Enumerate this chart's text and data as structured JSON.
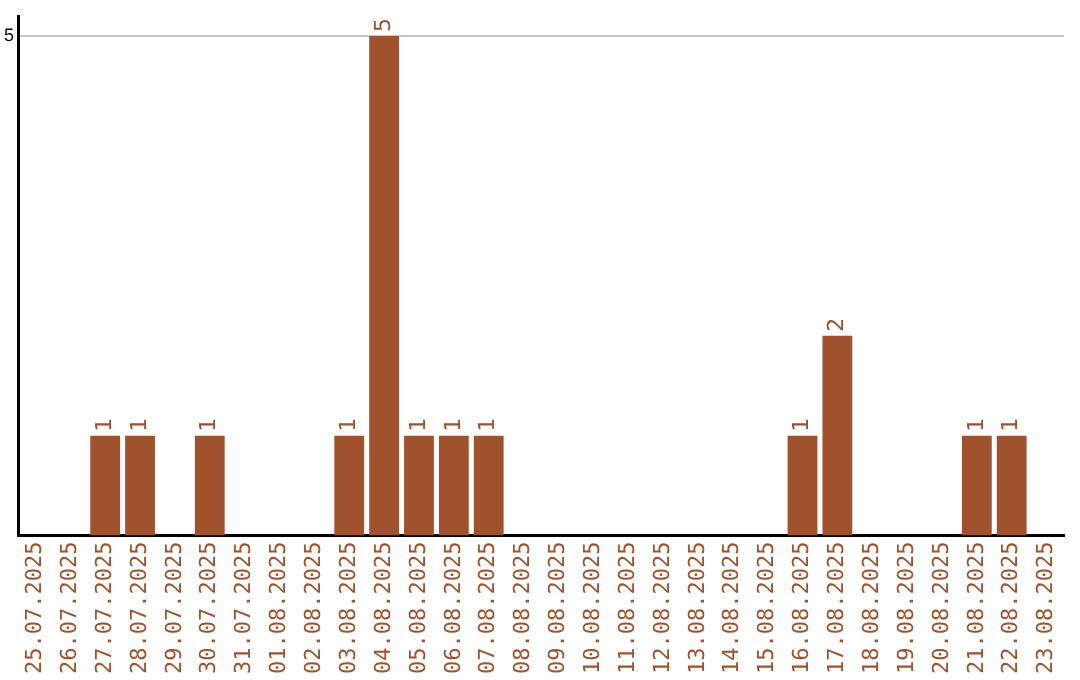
{
  "chart_data": {
    "type": "bar",
    "categories": [
      "25.07.2025",
      "26.07.2025",
      "27.07.2025",
      "28.07.2025",
      "29.07.2025",
      "30.07.2025",
      "31.07.2025",
      "01.08.2025",
      "02.08.2025",
      "03.08.2025",
      "04.08.2025",
      "05.08.2025",
      "06.08.2025",
      "07.08.2025",
      "08.08.2025",
      "09.08.2025",
      "10.08.2025",
      "11.08.2025",
      "12.08.2025",
      "13.08.2025",
      "14.08.2025",
      "15.08.2025",
      "16.08.2025",
      "17.08.2025",
      "18.08.2025",
      "19.08.2025",
      "20.08.2025",
      "21.08.2025",
      "22.08.2025",
      "23.08.2025"
    ],
    "values": [
      0,
      0,
      1,
      1,
      0,
      1,
      0,
      0,
      0,
      1,
      5,
      1,
      1,
      1,
      0,
      0,
      0,
      0,
      0,
      0,
      0,
      0,
      1,
      2,
      0,
      0,
      0,
      1,
      1,
      0
    ],
    "value_labels": [
      null,
      null,
      "1",
      "1",
      null,
      "1",
      null,
      null,
      null,
      "1",
      "5",
      "1",
      "1",
      "1",
      null,
      null,
      null,
      null,
      null,
      null,
      null,
      null,
      "1",
      "2",
      null,
      null,
      null,
      "1",
      "1",
      null
    ],
    "color": "#a0522d",
    "ylim": [
      0,
      5.2
    ],
    "yticks": [
      5
    ],
    "grid": "y",
    "legend": false
  }
}
